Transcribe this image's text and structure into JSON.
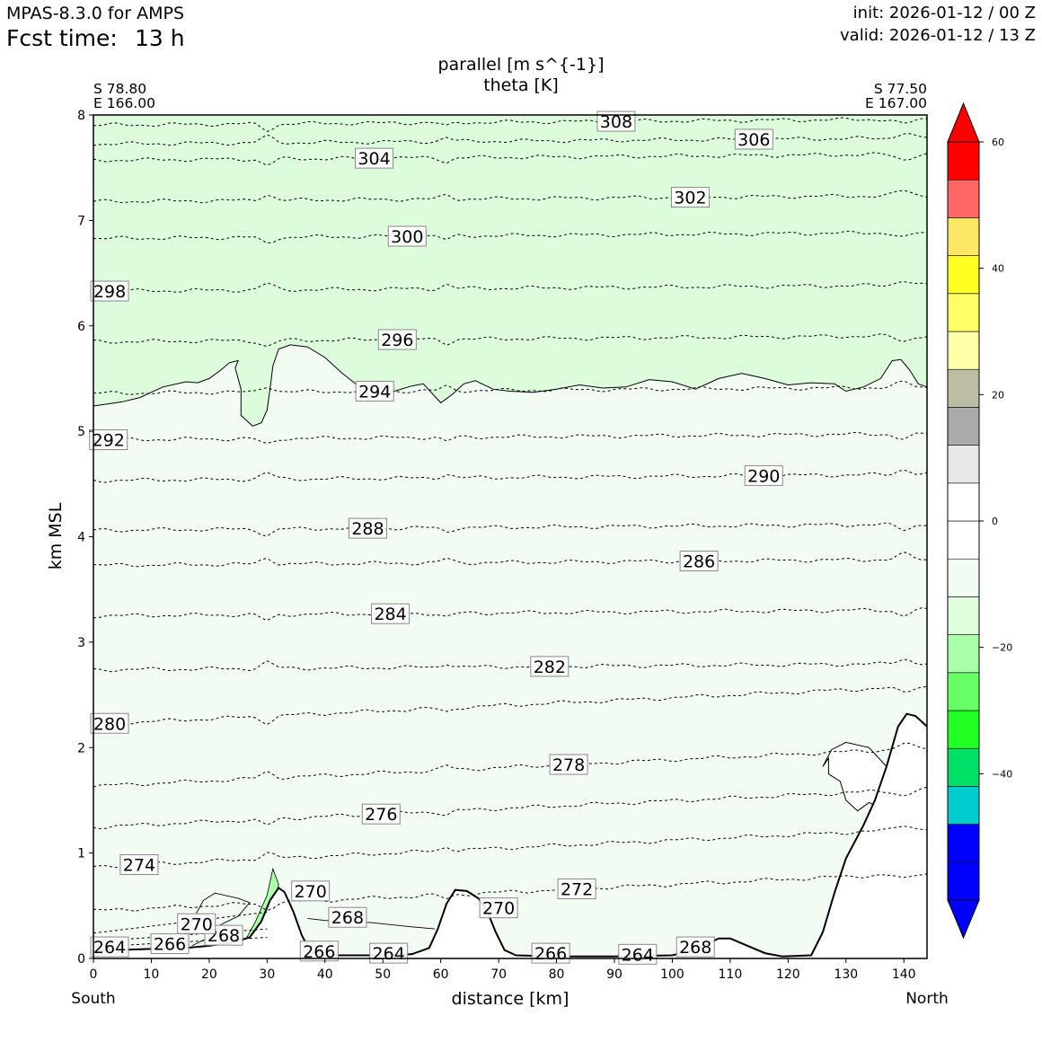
{
  "header": {
    "model": "MPAS-8.3.0 for AMPS",
    "fcst_label": "Fcst time:",
    "fcst_value": "13 h",
    "init": "init: 2026-01-12 / 00 Z",
    "valid": "valid: 2026-01-12 / 13 Z"
  },
  "chart_data": {
    "type": "cross-section",
    "title_line1": "parallel [m s^{-1}]",
    "title_line2": "theta [K]",
    "xlabel": "distance [km]",
    "ylabel": "km MSL",
    "xlim": [
      0,
      144
    ],
    "ylim": [
      0,
      8
    ],
    "x_ticks": [
      0,
      10,
      20,
      30,
      40,
      50,
      60,
      70,
      80,
      90,
      100,
      110,
      120,
      130,
      140
    ],
    "y_ticks": [
      0,
      1,
      2,
      3,
      4,
      5,
      6,
      7,
      8
    ],
    "left_end": {
      "lat": "S 78.80",
      "lon": "E 166.00",
      "direction": "South"
    },
    "right_end": {
      "lat": "S 77.50",
      "lon": "E 167.00",
      "direction": "North"
    },
    "colorbar": {
      "min": -60,
      "max": 60,
      "step": 5,
      "ticks": [
        -40,
        -20,
        0,
        20,
        40,
        60
      ],
      "tick_labels": [
        "−40",
        "−20",
        "0",
        "20",
        "40",
        "60"
      ],
      "colors": [
        "#0000ff",
        "#0000ff",
        "#00cdcd",
        "#00e067",
        "#22ff22",
        "#66ff66",
        "#aaffaa",
        "#ddfddd",
        "#f2fcf2",
        "#ffffff",
        "#ffffff",
        "#e8e8e8",
        "#aaaaaa",
        "#bdbda3",
        "#ffffaa",
        "#ffff66",
        "#ffff22",
        "#ffe766",
        "#ff6666",
        "#ff0000"
      ],
      "under_color": "#0000ff",
      "over_color": "#ff0000"
    },
    "wind_region_above_contour": {
      "value_range": [
        -10,
        -5
      ],
      "color": "#dcfcdc"
    },
    "wind_region_below_contour": {
      "value_range": [
        -5,
        0
      ],
      "color": "#f2fcf2"
    },
    "theta_contours": [
      {
        "value": 264,
        "label_x": 2.8,
        "label_z": 0.11
      },
      {
        "value": 266,
        "label_x": 13.2,
        "label_z": 0.14
      },
      {
        "value": 268,
        "label_x": 22.5,
        "label_z": 0.22
      },
      {
        "value": 270,
        "label_x": 17.8,
        "label_z": 0.33
      },
      {
        "value": 272,
        "label_x": 83.5,
        "label_z": 0.66
      },
      {
        "value": 274,
        "label_x": 7.9,
        "label_z": 0.89
      },
      {
        "value": 276,
        "label_x": 49.7,
        "label_z": 1.37
      },
      {
        "value": 278,
        "label_x": 82.1,
        "label_z": 1.84
      },
      {
        "value": 280,
        "label_x": 2.8,
        "label_z": 2.23
      },
      {
        "value": 282,
        "label_x": 78.8,
        "label_z": 2.77
      },
      {
        "value": 284,
        "label_x": 51.3,
        "label_z": 3.27
      },
      {
        "value": 286,
        "label_x": 104.6,
        "label_z": 3.77
      },
      {
        "value": 288,
        "label_x": 47.4,
        "label_z": 4.08
      },
      {
        "value": 290,
        "label_x": 115.8,
        "label_z": 4.58
      },
      {
        "value": 292,
        "label_x": 2.6,
        "label_z": 4.92
      },
      {
        "value": 294,
        "label_x": 48.6,
        "label_z": 5.38
      },
      {
        "value": 296,
        "label_x": 52.5,
        "label_z": 5.87
      },
      {
        "value": 298,
        "label_x": 2.8,
        "label_z": 6.33
      },
      {
        "value": 300,
        "label_x": 54.2,
        "label_z": 6.85
      },
      {
        "value": 302,
        "label_x": 103.1,
        "label_z": 7.22
      },
      {
        "value": 304,
        "label_x": 48.5,
        "label_z": 7.59
      },
      {
        "value": 306,
        "label_x": 114.1,
        "label_z": 7.77
      },
      {
        "value": 308,
        "label_x": 90.3,
        "label_z": 7.94
      }
    ],
    "inline_labels": [
      {
        "text": "270",
        "x": 37.5,
        "z": 0.64
      },
      {
        "text": "268",
        "x": 43.9,
        "z": 0.39
      },
      {
        "text": "270",
        "x": 70.0,
        "z": 0.48
      },
      {
        "text": "266",
        "x": 39.0,
        "z": 0.07
      },
      {
        "text": "264",
        "x": 51.0,
        "z": 0.05
      },
      {
        "text": "266",
        "x": 79.0,
        "z": 0.05
      },
      {
        "text": "264",
        "x": 94.0,
        "z": 0.04
      },
      {
        "text": "268",
        "x": 104.0,
        "z": 0.11
      }
    ]
  }
}
